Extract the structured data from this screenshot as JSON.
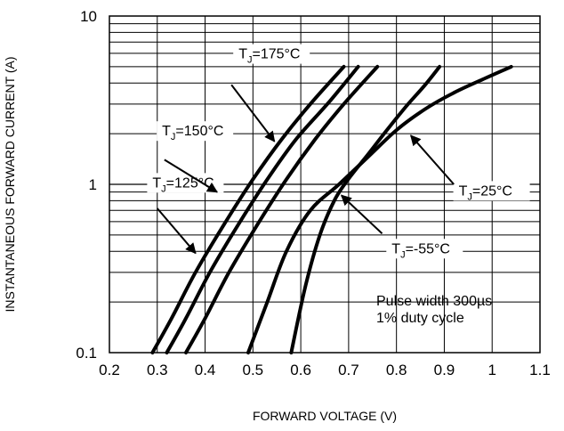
{
  "chart_data": {
    "type": "line",
    "title": "",
    "xlabel": "FORWARD VOLTAGE (V)",
    "ylabel": "INSTANTANEOUS FORWARD CURRENT (A)",
    "xlim": [
      0.2,
      1.1
    ],
    "ylim": [
      0.1,
      10
    ],
    "yscale": "log",
    "grid": true,
    "x_ticks": [
      0.2,
      0.3,
      0.4,
      0.5,
      0.6,
      0.7,
      0.8,
      0.9,
      1,
      1.1
    ],
    "x_tick_labels": [
      "0.2",
      "0.3",
      "0.4",
      "0.5",
      "0.6",
      "0.7",
      "0.8",
      "0.9",
      "1",
      "1.1"
    ],
    "y_ticks": [
      0.1,
      1,
      10
    ],
    "y_tick_labels": [
      "0.1",
      "1",
      "10"
    ],
    "line_color": "#000000",
    "series": [
      {
        "name": "T_J=175°C",
        "label_main": "T",
        "label_sub": "J",
        "label_rest": "=175°C",
        "label_pos": [
          0.47,
          5.6
        ],
        "arrow": [
          [
            0.455,
            3.9
          ],
          [
            0.545,
            1.8
          ]
        ],
        "x": [
          0.29,
          0.33,
          0.38,
          0.44,
          0.5,
          0.56,
          0.62,
          0.69
        ],
        "y": [
          0.1,
          0.16,
          0.3,
          0.58,
          1.07,
          1.85,
          3.0,
          5.0
        ]
      },
      {
        "name": "T_J=150°C",
        "label_main": "T",
        "label_sub": "J",
        "label_rest": "=150°C",
        "label_pos": [
          0.31,
          1.95
        ],
        "arrow": [
          [
            0.315,
            1.4
          ],
          [
            0.425,
            0.9
          ]
        ],
        "x": [
          0.32,
          0.36,
          0.41,
          0.47,
          0.53,
          0.59,
          0.66,
          0.72
        ],
        "y": [
          0.1,
          0.16,
          0.3,
          0.58,
          1.07,
          1.85,
          3.1,
          5.0
        ]
      },
      {
        "name": "T_J=125°C",
        "label_main": "T",
        "label_sub": "J",
        "label_rest": "=125°C",
        "label_pos": [
          0.29,
          0.96
        ],
        "arrow": [
          [
            0.3,
            0.72
          ],
          [
            0.38,
            0.39
          ]
        ],
        "x": [
          0.36,
          0.4,
          0.45,
          0.51,
          0.57,
          0.63,
          0.69,
          0.76
        ],
        "y": [
          0.1,
          0.16,
          0.3,
          0.58,
          1.07,
          1.85,
          3.0,
          5.0
        ]
      },
      {
        "name": "T_J=25°C",
        "label_main": "T",
        "label_sub": "J",
        "label_rest": "=25°C",
        "label_pos": [
          0.93,
          0.86
        ],
        "arrow": [
          [
            0.92,
            1.0
          ],
          [
            0.83,
            1.95
          ]
        ],
        "x": [
          0.49,
          0.53,
          0.57,
          0.62,
          0.68,
          0.74,
          0.8,
          0.86,
          0.92,
          0.98,
          1.04
        ],
        "y": [
          0.1,
          0.2,
          0.4,
          0.7,
          1.0,
          1.45,
          2.1,
          2.8,
          3.5,
          4.2,
          5.0
        ]
      },
      {
        "name": "T_J=-55°C",
        "label_main": "T",
        "label_sub": "J",
        "label_rest": "=-55°C",
        "label_pos": [
          0.79,
          0.39
        ],
        "arrow": [
          [
            0.77,
            0.51
          ],
          [
            0.685,
            0.86
          ]
        ],
        "x": [
          0.58,
          0.61,
          0.64,
          0.67,
          0.7,
          0.74,
          0.78,
          0.82,
          0.86,
          0.89
        ],
        "y": [
          0.1,
          0.25,
          0.5,
          0.8,
          1.08,
          1.5,
          2.1,
          2.9,
          3.9,
          5.0
        ]
      }
    ],
    "annotations": [
      "Pulse width 300µs",
      "1% duty cycle"
    ]
  }
}
